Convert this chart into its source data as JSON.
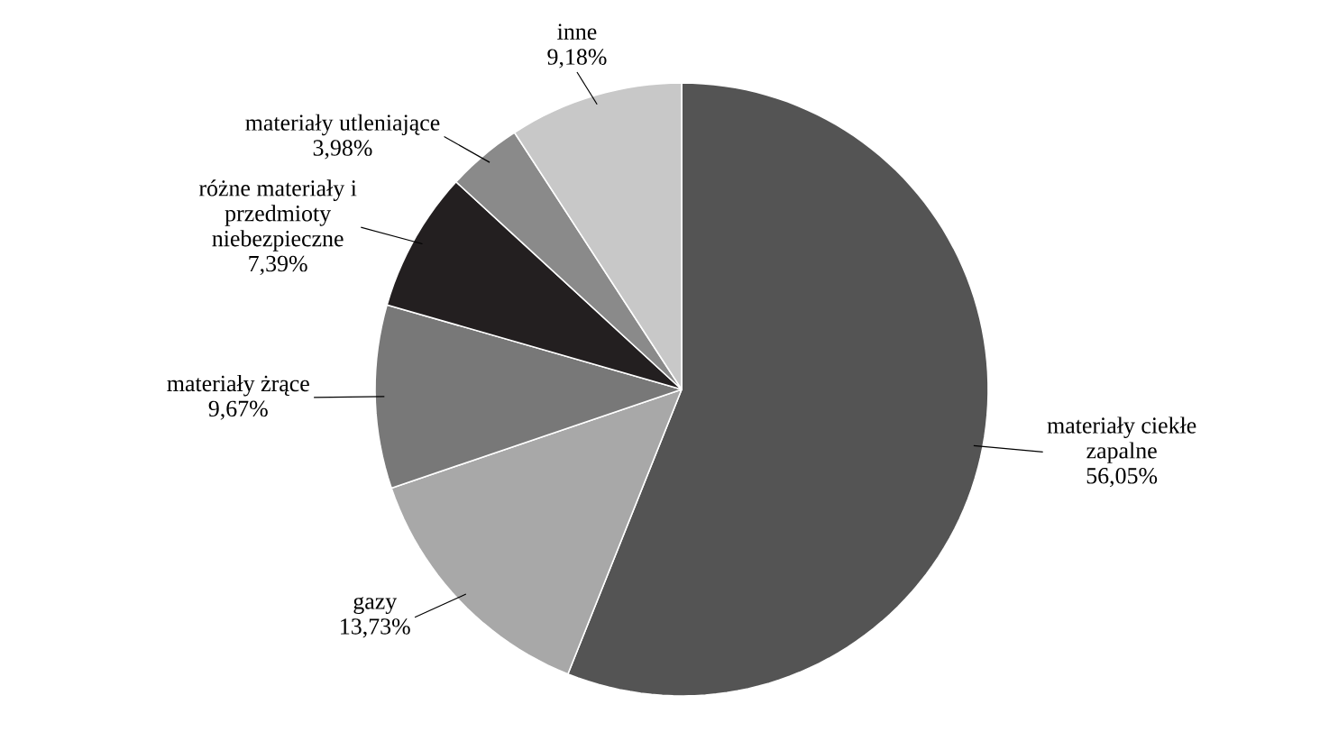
{
  "chart_data": {
    "type": "pie",
    "categories": [
      "materiały ciekłe zapalne",
      "gazy",
      "materiały żrące",
      "różne materiały i przedmioty niebezpieczne",
      "materiały utleniające",
      "inne"
    ],
    "values": [
      56.05,
      13.73,
      9.67,
      7.39,
      3.98,
      9.18
    ],
    "value_labels": [
      "56,05%",
      "13,73%",
      "9,67%",
      "7,39%",
      "3,98%",
      "9,18%"
    ],
    "colors": [
      "#545454",
      "#a8a8a8",
      "#787878",
      "#231f20",
      "#8a8a8a",
      "#c8c8c8"
    ]
  }
}
